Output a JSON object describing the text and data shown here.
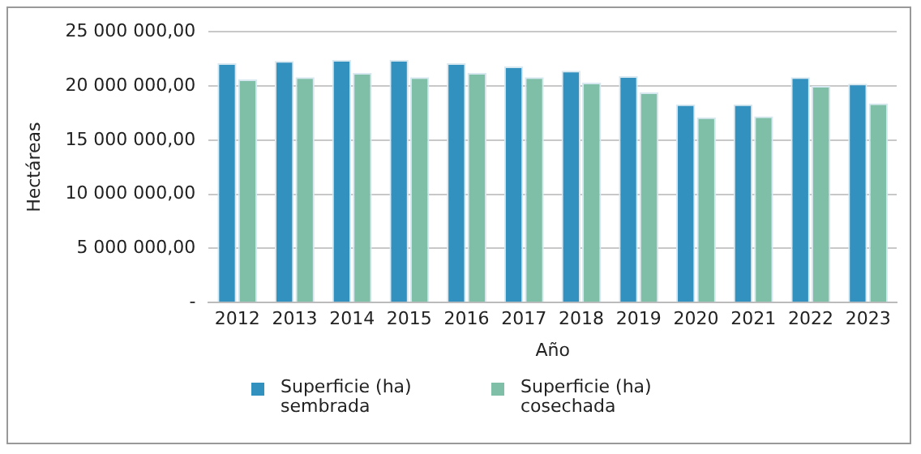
{
  "chart_data": {
    "type": "bar",
    "xlabel": "Año",
    "ylabel": "Hectáreas",
    "categories": [
      "2012",
      "2013",
      "2014",
      "2015",
      "2016",
      "2017",
      "2018",
      "2019",
      "2020",
      "2021",
      "2022",
      "2023"
    ],
    "series": [
      {
        "name": "Superficie (ha) sembrada",
        "color": "#3391bf",
        "values": [
          22100000,
          22300000,
          22400000,
          22400000,
          22100000,
          21800000,
          21400000,
          20900000,
          18300000,
          18300000,
          20800000,
          20200000
        ]
      },
      {
        "name": "Superficie (ha) cosechada",
        "color": "#7fbfa8",
        "values": [
          20600000,
          20800000,
          21200000,
          20800000,
          21200000,
          20800000,
          20300000,
          19400000,
          17100000,
          17200000,
          20000000,
          18400000
        ]
      }
    ],
    "ylim": [
      0,
      25000000
    ],
    "yticks": [
      {
        "value": 0,
        "label": "-"
      },
      {
        "value": 5000000,
        "label": "5 000 000,00"
      },
      {
        "value": 10000000,
        "label": "10 000 000,00"
      },
      {
        "value": 15000000,
        "label": "15 000 000,00"
      },
      {
        "value": 20000000,
        "label": "20 000 000,00"
      },
      {
        "value": 25000000,
        "label": "25 000 000,00"
      }
    ],
    "grid": "y",
    "legend": "bottom"
  }
}
